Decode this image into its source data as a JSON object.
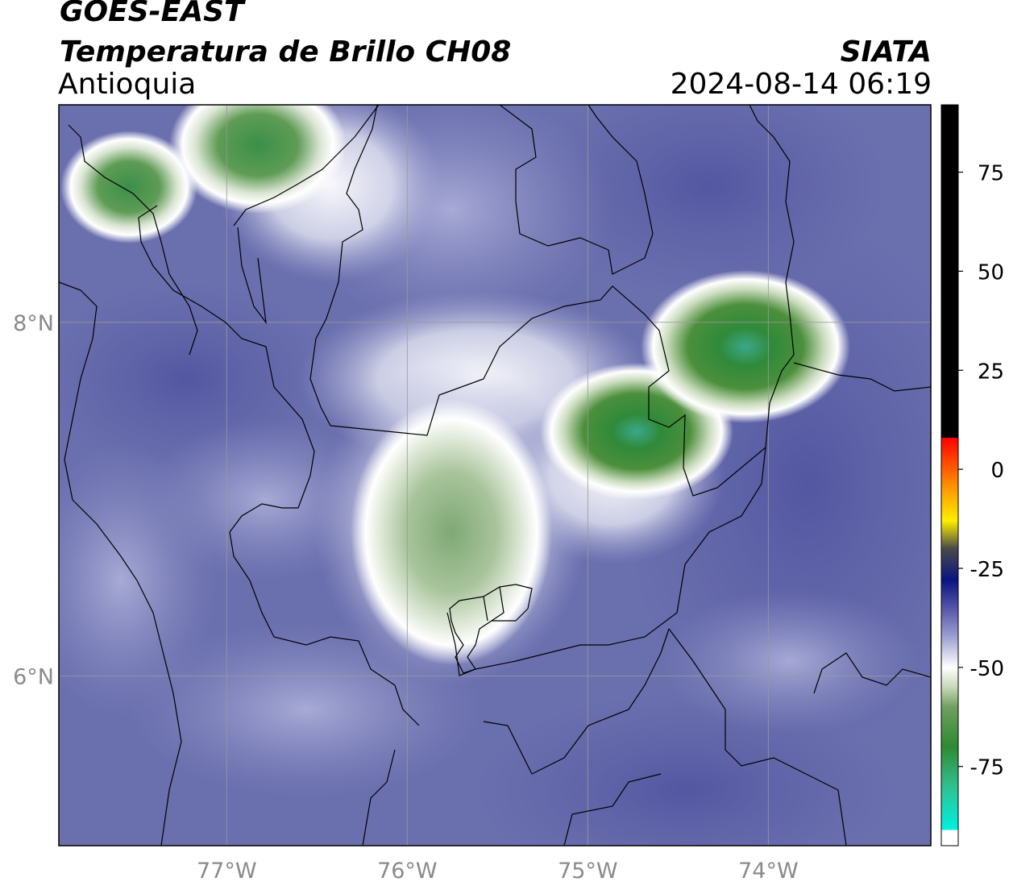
{
  "header": {
    "satellite": "GOES-EAST",
    "product": "Temperatura de Brillo CH08",
    "region": "Antioquia",
    "brand": "SIATA",
    "timestamp": "2024-08-14 06:19"
  },
  "map": {
    "lon_range": [
      -77.93,
      -73.1
    ],
    "lat_range": [
      5.04,
      9.23
    ],
    "lon_ticks": [
      {
        "value": -77,
        "label": "77°W"
      },
      {
        "value": -76,
        "label": "76°W"
      },
      {
        "value": -75,
        "label": "75°W"
      },
      {
        "value": -74,
        "label": "74°W"
      }
    ],
    "lat_ticks": [
      {
        "value": 8,
        "label": "8°N"
      },
      {
        "value": 6,
        "label": "6°N"
      }
    ],
    "grid": true,
    "colors": {
      "background_cloud_free": "#6a6fae",
      "cold_cloud_green": "#4c8f3c",
      "coldest_teal": "#3fbfa0",
      "gridline": "#9a9a9a",
      "border": "#000000"
    }
  },
  "colorbar": {
    "range": [
      -95,
      92
    ],
    "ticks": [
      {
        "value": 75,
        "label": "75"
      },
      {
        "value": 50,
        "label": "50"
      },
      {
        "value": 25,
        "label": "25"
      },
      {
        "value": 0,
        "label": "0"
      },
      {
        "value": -25,
        "label": "-25"
      },
      {
        "value": -50,
        "label": "-50"
      },
      {
        "value": -75,
        "label": "-75"
      }
    ],
    "stops": [
      {
        "value": -95,
        "color": "#ffffff"
      },
      {
        "value": -91,
        "color": "#ffffff"
      },
      {
        "value": -91,
        "color": "#00f0e0"
      },
      {
        "value": -80,
        "color": "#30c090"
      },
      {
        "value": -70,
        "color": "#2f8a30"
      },
      {
        "value": -60,
        "color": "#6fa060"
      },
      {
        "value": -55,
        "color": "#c8d8b8"
      },
      {
        "value": -50,
        "color": "#ffffff"
      },
      {
        "value": -42,
        "color": "#9a9dd0"
      },
      {
        "value": -35,
        "color": "#5555a8"
      },
      {
        "value": -28,
        "color": "#0a1480"
      },
      {
        "value": -20,
        "color": "#4a4a4a"
      },
      {
        "value": -13,
        "color": "#ffee00"
      },
      {
        "value": -5,
        "color": "#ff9900"
      },
      {
        "value": 8,
        "color": "#ff0000"
      },
      {
        "value": 8,
        "color": "#000000"
      },
      {
        "value": 92,
        "color": "#000000"
      }
    ]
  }
}
